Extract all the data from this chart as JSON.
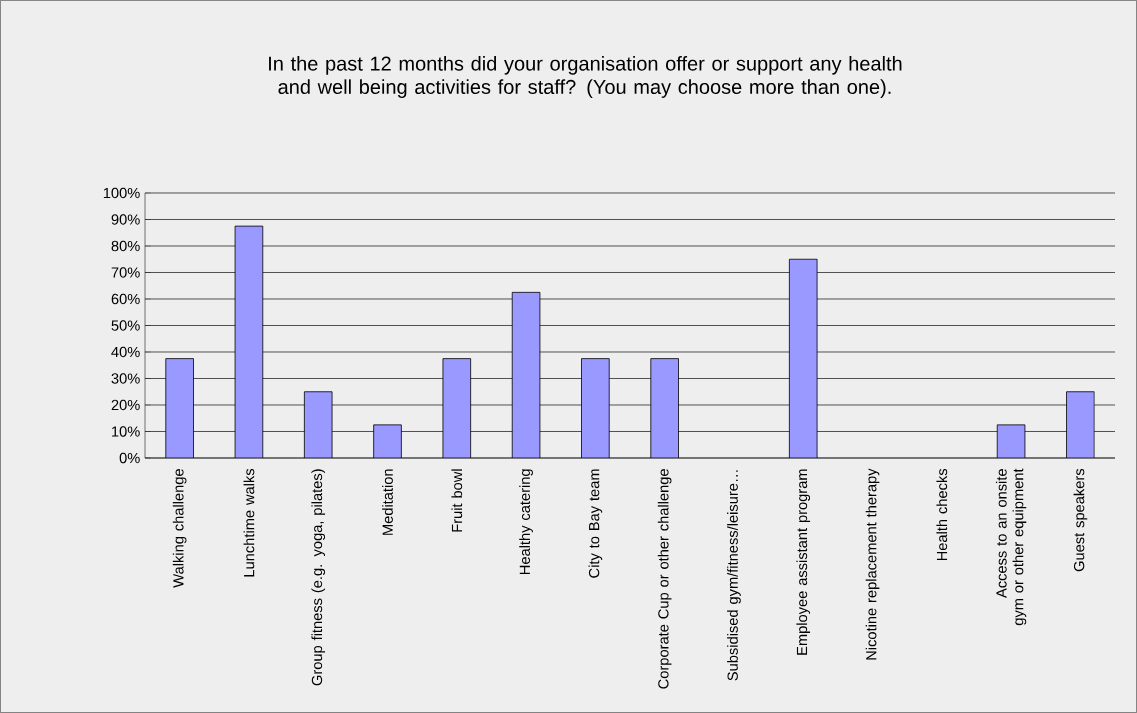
{
  "chart_data": {
    "type": "bar",
    "title": "In the past 12 months did your organisation offer or support any health and well being activities for staff? (You may choose more than one).",
    "categories": [
      "Walking challenge",
      "Lunchtime walks",
      "Group fitness (e.g. yoga, pilates)",
      "Meditation",
      "Fruit bowl",
      "Healthy catering",
      "City to Bay team",
      "Corporate Cup or other challenge",
      "Subsidised gym/fitness/leisure…",
      "Employee assistant program",
      "Nicotine replacement therapy",
      "Health checks",
      "Access to an onsite gym or other equipment",
      "Guest speakers"
    ],
    "values": [
      37.5,
      87.5,
      25,
      12.5,
      37.5,
      62.5,
      37.5,
      37.5,
      0,
      75,
      0,
      0,
      12.5,
      25
    ],
    "color": "#9999ff",
    "ylim": [
      0,
      100
    ],
    "yticks": [
      {
        "value": 0,
        "label": "0%"
      },
      {
        "value": 10,
        "label": "10%"
      },
      {
        "value": 20,
        "label": "20%"
      },
      {
        "value": 30,
        "label": "30%"
      },
      {
        "value": 40,
        "label": "40%"
      },
      {
        "value": 50,
        "label": "50%"
      },
      {
        "value": 60,
        "label": "60%"
      },
      {
        "value": 70,
        "label": "70%"
      },
      {
        "value": 80,
        "label": "80%"
      },
      {
        "value": 90,
        "label": "90%"
      },
      {
        "value": 100,
        "label": "100%"
      }
    ],
    "grid": "y"
  }
}
